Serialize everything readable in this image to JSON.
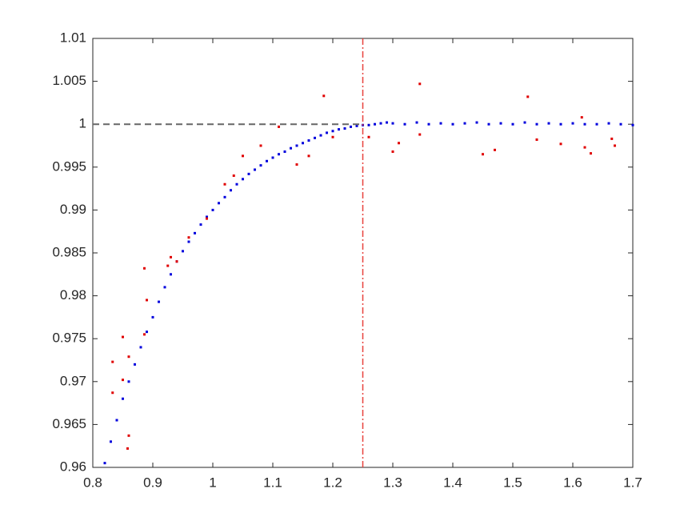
{
  "chart_data": {
    "type": "scatter",
    "xlim": [
      0.8,
      1.7
    ],
    "ylim": [
      0.96,
      1.01
    ],
    "xticks": [
      0.8,
      0.9,
      1,
      1.1,
      1.2,
      1.3,
      1.4,
      1.5,
      1.6,
      1.7
    ],
    "yticks": [
      0.96,
      0.965,
      0.97,
      0.975,
      0.98,
      0.985,
      0.99,
      0.995,
      1,
      1.005,
      1.01
    ],
    "hline": {
      "value": 1,
      "xrange": [
        0.8,
        1.25
      ],
      "color": "#666666"
    },
    "vline": {
      "value": 1.25,
      "color": "#e8413c"
    },
    "series": [
      {
        "color": "#0000dd",
        "x": [
          0.82,
          0.83,
          0.84,
          0.85,
          0.86,
          0.87,
          0.88,
          0.89,
          0.9,
          0.91,
          0.92,
          0.93,
          0.94,
          0.95,
          0.96,
          0.97,
          0.98,
          0.99,
          1.0,
          1.01,
          1.02,
          1.03,
          1.04,
          1.05,
          1.06,
          1.07,
          1.08,
          1.09,
          1.1,
          1.11,
          1.12,
          1.13,
          1.14,
          1.15,
          1.16,
          1.17,
          1.18,
          1.19,
          1.2,
          1.21,
          1.22,
          1.23,
          1.24,
          1.25,
          1.26,
          1.27,
          1.28,
          1.29,
          1.3,
          1.32,
          1.34,
          1.36,
          1.38,
          1.4,
          1.42,
          1.44,
          1.46,
          1.48,
          1.5,
          1.52,
          1.54,
          1.56,
          1.58,
          1.6,
          1.62,
          1.64,
          1.66,
          1.68,
          1.7
        ],
        "values": [
          0.9605,
          0.963,
          0.9655,
          0.968,
          0.97,
          0.972,
          0.974,
          0.9758,
          0.9775,
          0.9793,
          0.981,
          0.9825,
          0.984,
          0.9852,
          0.9863,
          0.9873,
          0.9883,
          0.9892,
          0.99,
          0.9908,
          0.9915,
          0.9923,
          0.993,
          0.9936,
          0.9942,
          0.9947,
          0.9952,
          0.9957,
          0.9961,
          0.9965,
          0.9968,
          0.9972,
          0.9975,
          0.9978,
          0.9981,
          0.9984,
          0.9987,
          0.999,
          0.9992,
          0.9994,
          0.9995,
          0.9997,
          0.9998,
          0.9999,
          0.9999,
          1.0,
          1.0001,
          1.0002,
          1.0001,
          1.0,
          1.0002,
          1.0,
          1.0001,
          1.0,
          1.0001,
          1.0002,
          1.0,
          1.0001,
          1.0,
          1.0002,
          1.0,
          1.0001,
          1.0,
          1.0001,
          1.0,
          1.0,
          1.0001,
          1.0,
          0.9999
        ]
      },
      {
        "color": "#e00000",
        "x": [
          0.833,
          0.833,
          0.85,
          0.85,
          0.858,
          0.86,
          0.86,
          0.886,
          0.89,
          0.886,
          0.925,
          0.93,
          0.94,
          0.96,
          0.99,
          1.02,
          1.035,
          1.05,
          1.08,
          1.11,
          1.14,
          1.16,
          1.185,
          1.2,
          1.26,
          1.3,
          1.31,
          1.345,
          1.345,
          1.45,
          1.47,
          1.525,
          1.54,
          1.58,
          1.615,
          1.62,
          1.63,
          1.665,
          1.67
        ],
        "values": [
          0.9723,
          0.9687,
          0.9752,
          0.9702,
          0.9622,
          0.9637,
          0.9729,
          0.9832,
          0.9795,
          0.9755,
          0.9835,
          0.9845,
          0.984,
          0.9868,
          0.989,
          0.993,
          0.994,
          0.9963,
          0.9975,
          0.9997,
          0.9953,
          0.9963,
          1.0033,
          0.9985,
          0.9985,
          0.9968,
          0.9978,
          1.0047,
          0.9988,
          0.9965,
          0.997,
          1.0032,
          0.9982,
          0.9977,
          1.0008,
          0.9973,
          0.9966,
          0.9983,
          0.9975
        ]
      }
    ]
  }
}
